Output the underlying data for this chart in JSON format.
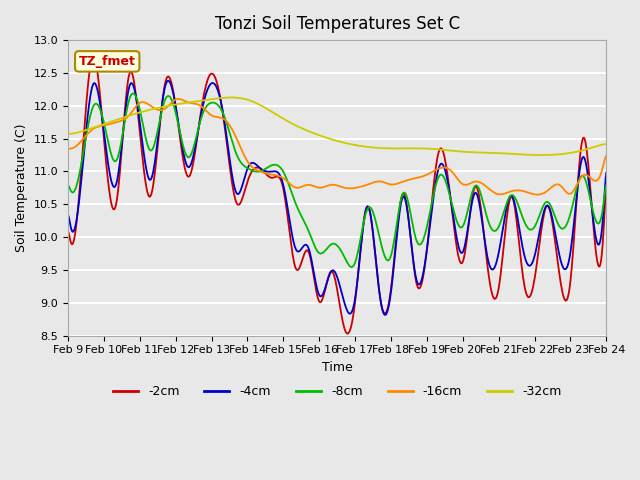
{
  "title": "Tonzi Soil Temperatures Set C",
  "xlabel": "Time",
  "ylabel": "Soil Temperature (C)",
  "ylim": [
    8.5,
    13.0
  ],
  "annotation": "TZ_fmet",
  "legend_labels": [
    "-2cm",
    "-4cm",
    "-8cm",
    "-16cm",
    "-32cm"
  ],
  "legend_colors": [
    "#cc0000",
    "#0000cc",
    "#00bb00",
    "#ff8800",
    "#cccc00"
  ],
  "bg_color": "#e8e8e8",
  "grid_color": "#ffffff",
  "xticks": [
    "Feb 9",
    "Feb 10",
    "Feb 11",
    "Feb 12",
    "Feb 13",
    "Feb 14",
    "Feb 15",
    "Feb 16",
    "Feb 17",
    "Feb 18",
    "Feb 19",
    "Feb 20",
    "Feb 21",
    "Feb 22",
    "Feb 23",
    "Feb 24"
  ],
  "n_days": 15,
  "points_per_day": 48
}
